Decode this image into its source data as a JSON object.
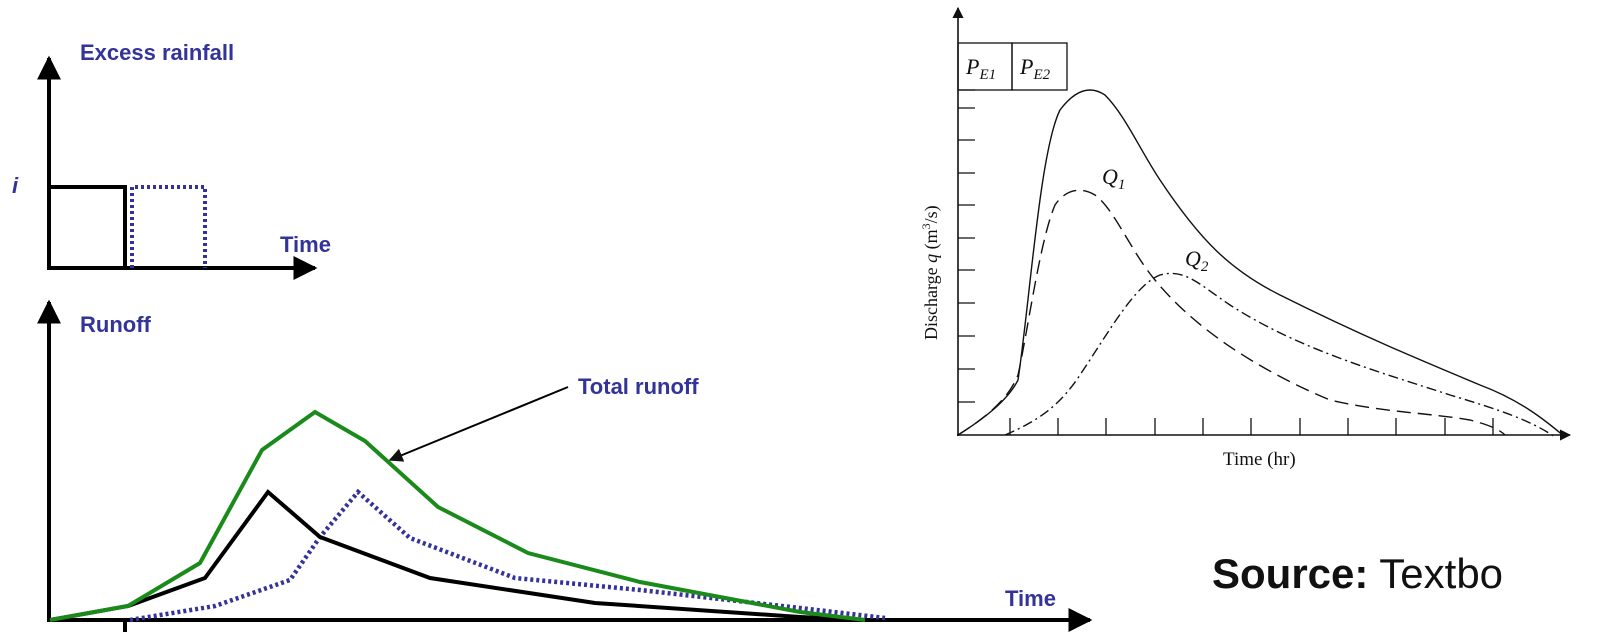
{
  "left_diagram": {
    "excess_rainfall_label": "Excess rainfall",
    "intensity_label": "i",
    "rainfall_time_label": "Time",
    "runoff_label": "Runoff",
    "total_runoff_label": "Total runoff",
    "runoff_time_label": "Time",
    "colors": {
      "total": "#1a8a1a",
      "first": "#000000",
      "second": "#333399",
      "text": "#333399"
    }
  },
  "right_diagram": {
    "pe1_label": "P",
    "pe1_sub": "E1",
    "pe2_label": "P",
    "pe2_sub": "E2",
    "q1_label": "Q",
    "q1_sub": "1",
    "q2_label": "Q",
    "q2_sub": "2",
    "ylabel_prefix": "Discharge ",
    "ylabel_var": "q",
    "ylabel_units": " (m",
    "ylabel_exp": "3",
    "ylabel_suffix": "/s)",
    "xlabel": "Time (hr)"
  },
  "source": {
    "label": "Source:",
    "text": " Textbo"
  }
}
